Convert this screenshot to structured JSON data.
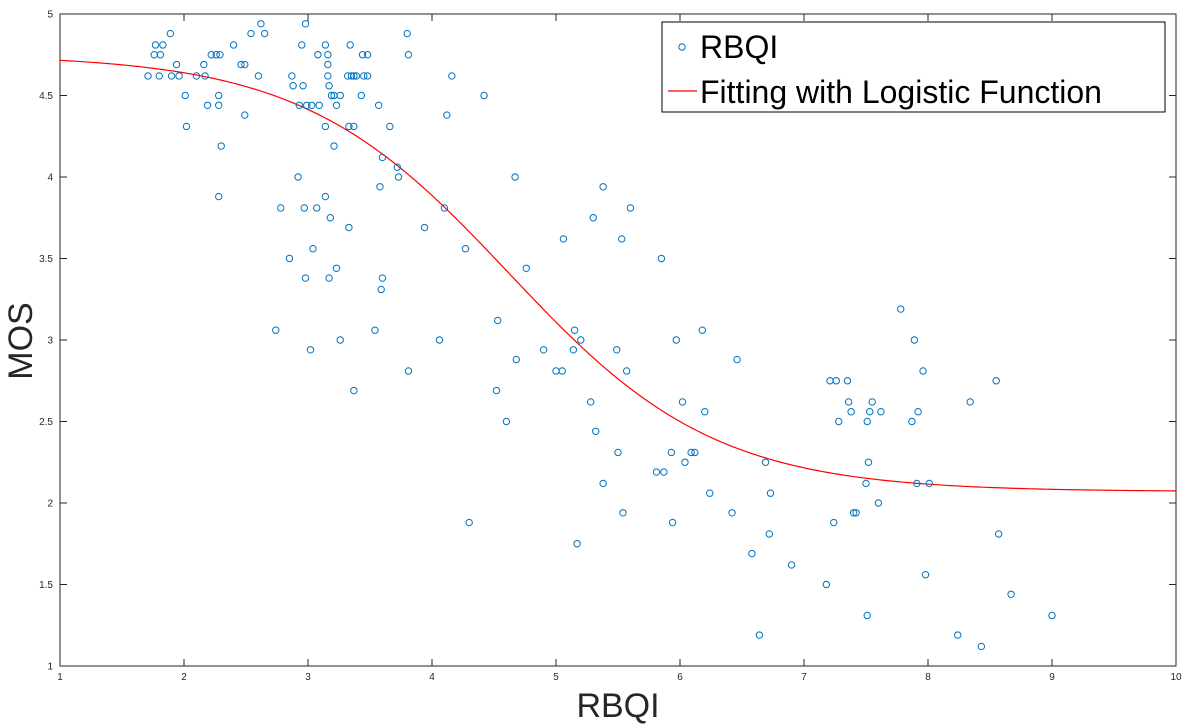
{
  "chart_data": {
    "type": "scatter",
    "xlabel": "RBQI",
    "ylabel": "MOS",
    "xlim": [
      1,
      10
    ],
    "ylim": [
      1,
      5
    ],
    "xticks": [
      1,
      2,
      3,
      4,
      5,
      6,
      7,
      8,
      9,
      10
    ],
    "yticks": [
      1,
      1.5,
      2,
      2.5,
      3,
      3.5,
      4,
      4.5,
      5
    ],
    "grid": false,
    "legend_position": "top-right",
    "legend": [
      "RBQI",
      "Fitting with Logistic Function"
    ],
    "series": [
      {
        "name": "RBQI",
        "kind": "scatter",
        "color": "#0072BD",
        "marker": "open-circle",
        "points": [
          [
            1.71,
            4.62
          ],
          [
            1.76,
            4.75
          ],
          [
            1.77,
            4.81
          ],
          [
            1.8,
            4.62
          ],
          [
            1.81,
            4.75
          ],
          [
            1.83,
            4.81
          ],
          [
            1.89,
            4.88
          ],
          [
            1.9,
            4.62
          ],
          [
            1.94,
            4.69
          ],
          [
            1.96,
            4.62
          ],
          [
            2.01,
            4.5
          ],
          [
            2.02,
            4.31
          ],
          [
            2.1,
            4.62
          ],
          [
            2.16,
            4.69
          ],
          [
            2.17,
            4.62
          ],
          [
            2.19,
            4.44
          ],
          [
            2.22,
            4.75
          ],
          [
            2.26,
            4.75
          ],
          [
            2.28,
            4.5
          ],
          [
            2.28,
            4.44
          ],
          [
            2.29,
            4.75
          ],
          [
            2.3,
            4.19
          ],
          [
            2.28,
            3.88
          ],
          [
            2.4,
            4.81
          ],
          [
            2.46,
            4.69
          ],
          [
            2.49,
            4.69
          ],
          [
            2.49,
            4.38
          ],
          [
            2.54,
            4.88
          ],
          [
            2.6,
            4.62
          ],
          [
            2.62,
            4.94
          ],
          [
            2.65,
            4.88
          ],
          [
            2.74,
            3.06
          ],
          [
            2.78,
            3.81
          ],
          [
            2.85,
            3.5
          ],
          [
            2.87,
            4.62
          ],
          [
            2.88,
            4.56
          ],
          [
            2.92,
            4.0
          ],
          [
            2.93,
            4.44
          ],
          [
            2.95,
            4.81
          ],
          [
            2.96,
            4.56
          ],
          [
            2.97,
            3.81
          ],
          [
            2.98,
            3.38
          ],
          [
            2.99,
            4.44
          ],
          [
            2.98,
            4.94
          ],
          [
            3.03,
            4.44
          ],
          [
            3.02,
            2.94
          ],
          [
            3.04,
            3.56
          ],
          [
            3.07,
            3.81
          ],
          [
            3.08,
            4.75
          ],
          [
            3.09,
            4.44
          ],
          [
            3.14,
            4.81
          ],
          [
            3.14,
            4.31
          ],
          [
            3.14,
            3.88
          ],
          [
            3.16,
            4.75
          ],
          [
            3.16,
            4.69
          ],
          [
            3.16,
            4.62
          ],
          [
            3.17,
            4.56
          ],
          [
            3.17,
            3.38
          ],
          [
            3.18,
            3.75
          ],
          [
            3.19,
            4.5
          ],
          [
            3.21,
            4.5
          ],
          [
            3.21,
            4.19
          ],
          [
            3.23,
            4.44
          ],
          [
            3.23,
            3.44
          ],
          [
            3.26,
            4.5
          ],
          [
            3.26,
            3.0
          ],
          [
            3.32,
            4.62
          ],
          [
            3.33,
            4.31
          ],
          [
            3.33,
            3.69
          ],
          [
            3.34,
            4.81
          ],
          [
            3.35,
            4.62
          ],
          [
            3.37,
            4.62
          ],
          [
            3.37,
            2.69
          ],
          [
            3.37,
            4.31
          ],
          [
            3.39,
            4.62
          ],
          [
            3.43,
            4.5
          ],
          [
            3.44,
            4.75
          ],
          [
            3.45,
            4.62
          ],
          [
            3.48,
            4.75
          ],
          [
            3.48,
            4.62
          ],
          [
            3.54,
            3.06
          ],
          [
            3.57,
            4.44
          ],
          [
            3.58,
            3.94
          ],
          [
            3.59,
            3.31
          ],
          [
            3.6,
            4.12
          ],
          [
            3.6,
            3.38
          ],
          [
            3.66,
            4.31
          ],
          [
            3.72,
            4.06
          ],
          [
            3.73,
            4.0
          ],
          [
            3.8,
            4.88
          ],
          [
            3.81,
            4.75
          ],
          [
            3.81,
            2.81
          ],
          [
            3.94,
            3.69
          ],
          [
            4.06,
            3.0
          ],
          [
            4.1,
            3.81
          ],
          [
            4.12,
            4.38
          ],
          [
            4.16,
            4.62
          ],
          [
            4.27,
            3.56
          ],
          [
            4.3,
            1.88
          ],
          [
            4.42,
            4.5
          ],
          [
            4.52,
            2.69
          ],
          [
            4.53,
            3.12
          ],
          [
            4.6,
            2.5
          ],
          [
            4.67,
            4.0
          ],
          [
            4.68,
            2.88
          ],
          [
            4.76,
            3.44
          ],
          [
            4.9,
            2.94
          ],
          [
            5.0,
            2.81
          ],
          [
            5.05,
            2.81
          ],
          [
            5.06,
            3.62
          ],
          [
            5.14,
            2.94
          ],
          [
            5.15,
            3.06
          ],
          [
            5.17,
            1.75
          ],
          [
            5.2,
            3.0
          ],
          [
            5.28,
            2.62
          ],
          [
            5.3,
            3.75
          ],
          [
            5.32,
            2.44
          ],
          [
            5.38,
            2.12
          ],
          [
            5.38,
            3.94
          ],
          [
            5.49,
            2.94
          ],
          [
            5.5,
            2.31
          ],
          [
            5.53,
            3.62
          ],
          [
            5.54,
            1.94
          ],
          [
            5.57,
            2.81
          ],
          [
            5.6,
            3.81
          ],
          [
            5.81,
            2.19
          ],
          [
            5.85,
            3.5
          ],
          [
            5.87,
            2.19
          ],
          [
            5.93,
            2.31
          ],
          [
            5.94,
            1.88
          ],
          [
            5.97,
            3.0
          ],
          [
            6.02,
            2.62
          ],
          [
            6.04,
            2.25
          ],
          [
            6.09,
            2.31
          ],
          [
            6.12,
            2.31
          ],
          [
            6.18,
            3.06
          ],
          [
            6.2,
            2.56
          ],
          [
            6.24,
            2.06
          ],
          [
            6.42,
            1.94
          ],
          [
            6.46,
            2.88
          ],
          [
            6.58,
            1.69
          ],
          [
            6.64,
            1.19
          ],
          [
            6.69,
            2.25
          ],
          [
            6.72,
            1.81
          ],
          [
            6.73,
            2.06
          ],
          [
            6.9,
            1.62
          ],
          [
            7.18,
            1.5
          ],
          [
            7.21,
            2.75
          ],
          [
            7.24,
            1.88
          ],
          [
            7.26,
            2.75
          ],
          [
            7.28,
            2.5
          ],
          [
            7.35,
            2.75
          ],
          [
            7.36,
            2.62
          ],
          [
            7.38,
            2.56
          ],
          [
            7.4,
            1.94
          ],
          [
            7.42,
            1.94
          ],
          [
            7.5,
            2.12
          ],
          [
            7.51,
            2.5
          ],
          [
            7.52,
            2.25
          ],
          [
            7.51,
            1.31
          ],
          [
            7.53,
            2.56
          ],
          [
            7.55,
            2.62
          ],
          [
            7.6,
            2.0
          ],
          [
            7.62,
            2.56
          ],
          [
            7.78,
            3.19
          ],
          [
            7.87,
            2.5
          ],
          [
            7.89,
            3.0
          ],
          [
            7.91,
            2.12
          ],
          [
            7.92,
            2.56
          ],
          [
            7.96,
            2.81
          ],
          [
            7.98,
            1.56
          ],
          [
            8.01,
            2.12
          ],
          [
            8.24,
            1.19
          ],
          [
            8.34,
            2.62
          ],
          [
            8.43,
            1.12
          ],
          [
            8.55,
            2.75
          ],
          [
            8.57,
            1.81
          ],
          [
            8.67,
            1.44
          ],
          [
            9.0,
            1.31
          ]
        ]
      },
      {
        "name": "Fitting with Logistic Function",
        "kind": "line",
        "color": "#FF0000",
        "model": "MOS = 2.07 + 2.68 / (1 + exp(1.2 * (RBQI - 4.62)))",
        "params": {
          "lower": 2.07,
          "range": 2.68,
          "slope": 1.2,
          "center": 4.62
        }
      }
    ]
  }
}
